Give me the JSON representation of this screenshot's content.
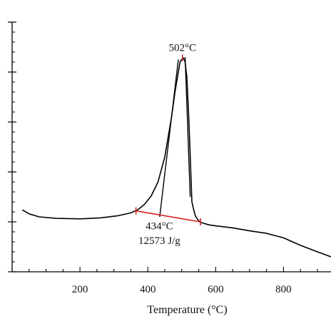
{
  "chart_data": {
    "type": "line",
    "xlabel": "Temperature (°C)",
    "ylabel": "",
    "xlim": [
      0,
      940
    ],
    "ylim": [
      0,
      5
    ],
    "x_ticks": [
      200,
      400,
      600,
      800
    ],
    "x_tick_labels": [
      "200",
      "400",
      "600",
      "800"
    ],
    "y_ticks": [
      0,
      1,
      2,
      3,
      4,
      5
    ],
    "grid": false,
    "legend": "none",
    "series": [
      {
        "color": "#000000",
        "x": [
          30,
          50,
          80,
          130,
          200,
          260,
          310,
          350,
          370,
          390,
          410,
          430,
          450,
          470,
          480,
          490,
          495,
          500,
          505,
          510,
          515,
          520,
          525,
          530,
          535,
          540,
          550,
          560,
          580,
          600,
          650,
          700,
          750,
          800,
          850,
          900,
          940
        ],
        "y": [
          1.24,
          1.16,
          1.1,
          1.07,
          1.06,
          1.08,
          1.12,
          1.18,
          1.24,
          1.35,
          1.52,
          1.8,
          2.3,
          3.1,
          3.6,
          4.0,
          4.2,
          4.25,
          4.28,
          4.2,
          3.9,
          3.2,
          2.3,
          1.4,
          1.25,
          1.12,
          1.02,
          0.98,
          0.94,
          0.92,
          0.88,
          0.82,
          0.77,
          0.68,
          0.53,
          0.4,
          0.3
        ]
      }
    ],
    "tangent_lines": [
      {
        "color": "#000000",
        "x": [
          435,
          490
        ],
        "y": [
          1.1,
          4.25
        ]
      },
      {
        "color": "#000000",
        "x": [
          510,
          525
        ],
        "y": [
          4.3,
          1.5
        ]
      }
    ],
    "baseline": {
      "color": "#d62020",
      "x": [
        365,
        555
      ],
      "y": [
        1.22,
        1.0
      ]
    },
    "annotations": [
      {
        "text": "502°C",
        "x": 502,
        "y": 4.42
      },
      {
        "text": "434°C",
        "x": 434,
        "y": 0.85
      },
      {
        "text": "12573 J/g",
        "x": 434,
        "y": 0.56
      }
    ]
  }
}
